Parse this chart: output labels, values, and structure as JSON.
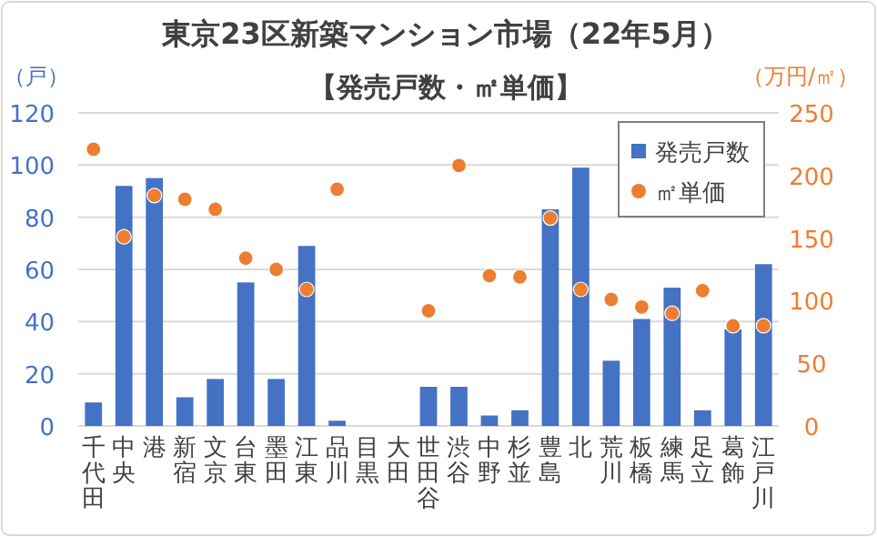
{
  "chart_data": {
    "type": "bar",
    "title": "東京23区新築マンション市場（22年5月）",
    "subtitle": "【発売戸数・㎡単価】",
    "ylabel": "（戸）",
    "y2label": "（万円/㎡）",
    "categories": [
      "千代田",
      "中央",
      "港",
      "新宿",
      "文京",
      "台東",
      "墨田",
      "江東",
      "品川",
      "目黒",
      "大田",
      "世田谷",
      "渋谷",
      "中野",
      "杉並",
      "豊島",
      "北",
      "荒川",
      "板橋",
      "練馬",
      "足立",
      "葛飾",
      "江戸川"
    ],
    "series": [
      {
        "name": "発売戸数",
        "color": "#4472c4",
        "values": [
          9,
          92,
          95,
          11,
          18,
          55,
          18,
          69,
          2,
          0,
          0,
          15,
          15,
          4,
          6,
          83,
          99,
          25,
          41,
          53,
          6,
          37,
          62
        ]
      },
      {
        "name": "㎡単価",
        "type": "scatter",
        "axis": "y2",
        "marker": "circle",
        "color": "#ed7d31",
        "values": [
          221,
          151,
          184,
          181,
          173,
          134,
          125,
          109,
          189,
          null,
          null,
          92,
          208,
          120,
          119,
          166,
          109,
          101,
          95,
          90,
          108,
          80,
          80
        ]
      }
    ],
    "ylim": [
      0,
      120
    ],
    "yticks": [
      0,
      20,
      40,
      60,
      80,
      100,
      120
    ],
    "y2lim": [
      0,
      250
    ],
    "y2ticks": [
      0,
      50,
      100,
      150,
      200,
      250
    ],
    "grid": "y",
    "legend": "top right"
  }
}
